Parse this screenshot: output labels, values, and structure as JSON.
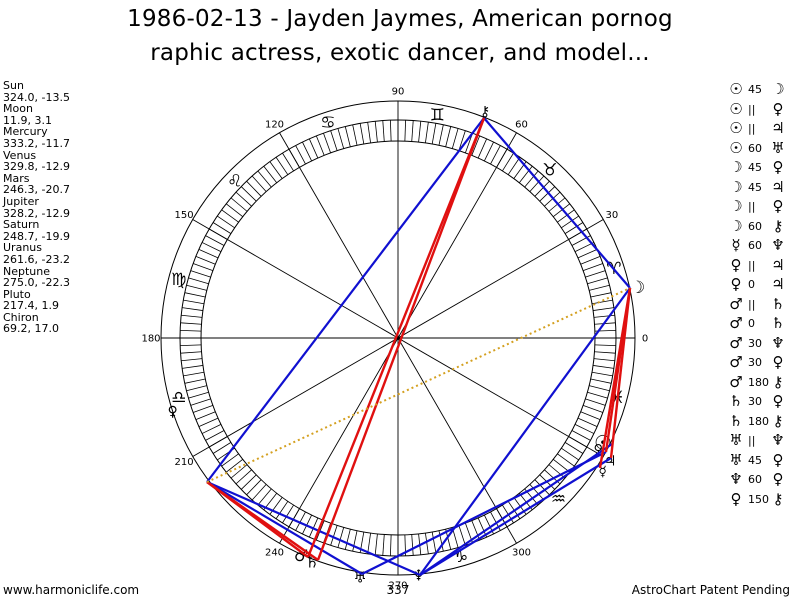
{
  "title_line1": "1986-02-13 - Jayden Jaymes, American pornog",
  "title_line2": "raphic actress, exotic dancer, and model...",
  "planets": [
    {
      "name": "Sun",
      "values": "324.0, -13.5",
      "glyph": "☉"
    },
    {
      "name": "Moon",
      "values": "11.9, 3.1",
      "glyph": "☽"
    },
    {
      "name": "Mercury",
      "values": "333.2, -11.7",
      "glyph": "☿"
    },
    {
      "name": "Venus",
      "values": "329.8, -12.9",
      "glyph": "♀"
    },
    {
      "name": "Mars",
      "values": "246.3, -20.7",
      "glyph": "♂"
    },
    {
      "name": "Jupiter",
      "values": "328.2, -12.9",
      "glyph": "♃"
    },
    {
      "name": "Saturn",
      "values": "248.7, -19.9",
      "glyph": "♄"
    },
    {
      "name": "Uranus",
      "values": "261.6, -23.2",
      "glyph": "♅"
    },
    {
      "name": "Neptune",
      "values": "275.0, -22.3",
      "glyph": "♆"
    },
    {
      "name": "Pluto",
      "values": "217.4, 1.9",
      "glyph": "♀"
    },
    {
      "name": "Chiron",
      "values": "69.2, 17.0",
      "glyph": "⚷"
    }
  ],
  "aspects": [
    {
      "p1": "☉",
      "aspect": "45",
      "p2": "☽"
    },
    {
      "p1": "☉",
      "aspect": "||",
      "p2": "♀"
    },
    {
      "p1": "☉",
      "aspect": "||",
      "p2": "♃"
    },
    {
      "p1": "☉",
      "aspect": "60",
      "p2": "♅"
    },
    {
      "p1": "☽",
      "aspect": "45",
      "p2": "♀"
    },
    {
      "p1": "☽",
      "aspect": "45",
      "p2": "♃"
    },
    {
      "p1": "☽",
      "aspect": "||",
      "p2": "♀"
    },
    {
      "p1": "☽",
      "aspect": "60",
      "p2": "⚷"
    },
    {
      "p1": "☿",
      "aspect": "60",
      "p2": "♆"
    },
    {
      "p1": "♀",
      "aspect": "||",
      "p2": "♃"
    },
    {
      "p1": "♀",
      "aspect": "0",
      "p2": "♃"
    },
    {
      "p1": "♂",
      "aspect": "||",
      "p2": "♄"
    },
    {
      "p1": "♂",
      "aspect": "0",
      "p2": "♄"
    },
    {
      "p1": "♂",
      "aspect": "30",
      "p2": "♆"
    },
    {
      "p1": "♂",
      "aspect": "30",
      "p2": "♀"
    },
    {
      "p1": "♂",
      "aspect": "180",
      "p2": "⚷"
    },
    {
      "p1": "♄",
      "aspect": "30",
      "p2": "♀"
    },
    {
      "p1": "♄",
      "aspect": "180",
      "p2": "⚷"
    },
    {
      "p1": "♅",
      "aspect": "||",
      "p2": "♆"
    },
    {
      "p1": "♅",
      "aspect": "45",
      "p2": "♀"
    },
    {
      "p1": "♆",
      "aspect": "60",
      "p2": "♀"
    },
    {
      "p1": "♀",
      "aspect": "150",
      "p2": "⚷"
    }
  ],
  "degree_labels": [
    "0",
    "30",
    "60",
    "90",
    "120",
    "150",
    "180",
    "210",
    "240",
    "270",
    "300"
  ],
  "bottom_label": "337",
  "footer_left": "www.harmoniclife.com",
  "footer_right": "AstroChart Patent Pending",
  "colors": {
    "ring": "#000000",
    "aspect_blue": "#1010d0",
    "aspect_red": "#e01010",
    "aspect_dotted": "#d4a020"
  }
}
